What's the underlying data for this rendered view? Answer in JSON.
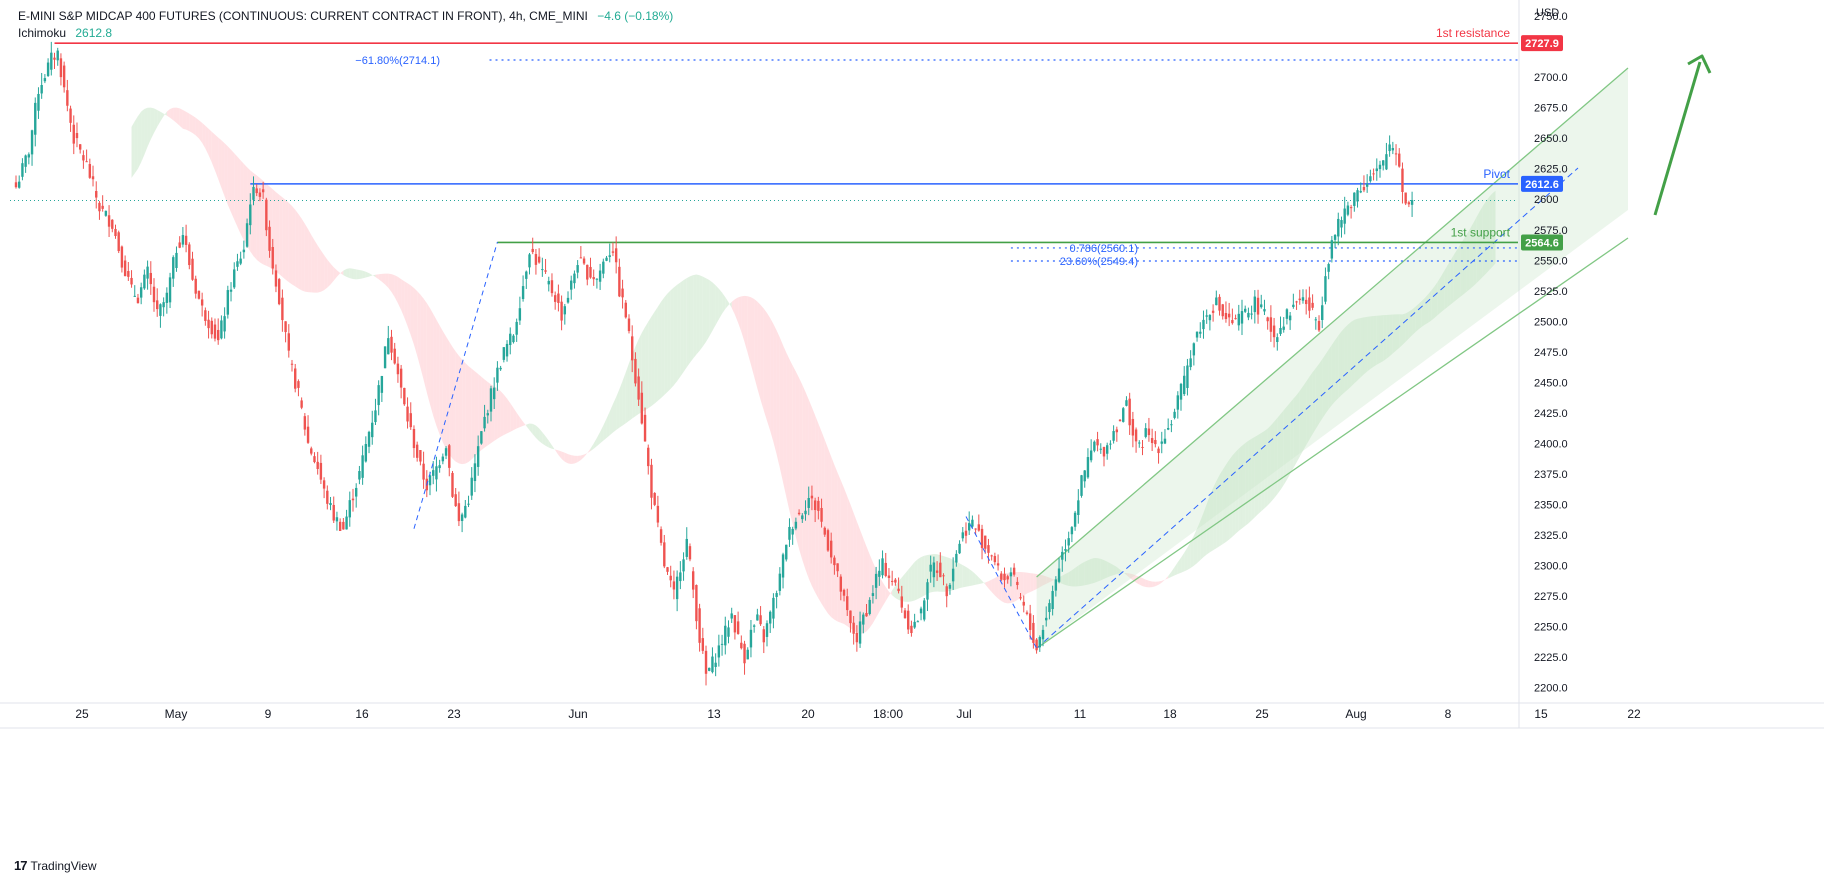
{
  "header": {
    "symbol": "E-MINI S&P MIDCAP 400 FUTURES (CONTINUOUS: CURRENT CONTRACT IN FRONT), 4h, CME_MINI",
    "change": "−4.6 (−0.18%)",
    "indicator_name": "Ichimoku",
    "indicator_value": "2612.8"
  },
  "currency": "USD",
  "footer": {
    "brand": "TradingView"
  },
  "colors": {
    "bull": "#26a69a",
    "bear": "#ef5350",
    "resistance": "#f23645",
    "pivot": "#2962ff",
    "support": "#43a047",
    "fib": "#2962ff",
    "cloud_bull": "#c8e6c9",
    "cloud_bear": "#ffcdd2",
    "channel": "#81c784"
  },
  "chart_data": {
    "type": "candlestick",
    "interval": "4h",
    "ylim": [
      2188,
      2760
    ],
    "y_ticks": [
      2200,
      2225,
      2250,
      2275,
      2300,
      2325,
      2350,
      2375,
      2400,
      2425,
      2450,
      2475,
      2500,
      2525,
      2550,
      2575,
      2600,
      2625,
      2650,
      2675,
      2700,
      2750
    ],
    "y_tick_labels": [
      "2200.0",
      "2225.0",
      "2250.0",
      "2275.0",
      "2300.0",
      "2325.0",
      "2350.0",
      "2375.0",
      "2400.0",
      "2425.0",
      "2450.0",
      "2475.0",
      "2500.0",
      "2525.0",
      "2550.0",
      "2575.0",
      "2600",
      "2625.0",
      "2650.0",
      "2675.0",
      "2700.0",
      "2750.0"
    ],
    "x_labels": [
      "25",
      "May",
      "9",
      "16",
      "23",
      "Jun",
      "13",
      "20",
      "18:00",
      "Jul",
      "11",
      "18",
      "25",
      "Aug",
      "8",
      "15",
      "22"
    ],
    "series_path": [
      [
        0,
        2610
      ],
      [
        4,
        2640
      ],
      [
        7,
        2690
      ],
      [
        11,
        2715
      ],
      [
        13,
        2720
      ],
      [
        15,
        2690
      ],
      [
        18,
        2650
      ],
      [
        22,
        2628
      ],
      [
        26,
        2593
      ],
      [
        30,
        2580
      ],
      [
        33,
        2550
      ],
      [
        36,
        2525
      ],
      [
        38,
        2520
      ],
      [
        41,
        2540
      ],
      [
        44,
        2505
      ],
      [
        47,
        2520
      ],
      [
        50,
        2560
      ],
      [
        52,
        2572
      ],
      [
        55,
        2535
      ],
      [
        58,
        2510
      ],
      [
        61,
        2495
      ],
      [
        63,
        2483
      ],
      [
        66,
        2520
      ],
      [
        68,
        2540
      ],
      [
        71,
        2560
      ],
      [
        73,
        2600
      ],
      [
        75,
        2610
      ],
      [
        77,
        2600
      ],
      [
        79,
        2560
      ],
      [
        82,
        2520
      ],
      [
        85,
        2470
      ],
      [
        88,
        2440
      ],
      [
        91,
        2400
      ],
      [
        94,
        2380
      ],
      [
        96,
        2360
      ],
      [
        99,
        2340
      ],
      [
        102,
        2330
      ],
      [
        104,
        2350
      ],
      [
        107,
        2375
      ],
      [
        110,
        2410
      ],
      [
        112,
        2430
      ],
      [
        114,
        2460
      ],
      [
        116,
        2490
      ],
      [
        118,
        2470
      ],
      [
        121,
        2430
      ],
      [
        124,
        2400
      ],
      [
        126,
        2380
      ],
      [
        128,
        2365
      ],
      [
        131,
        2380
      ],
      [
        134,
        2400
      ],
      [
        136,
        2360
      ],
      [
        138,
        2335
      ],
      [
        141,
        2355
      ],
      [
        144,
        2395
      ],
      [
        146,
        2420
      ],
      [
        149,
        2450
      ],
      [
        152,
        2475
      ],
      [
        155,
        2490
      ],
      [
        158,
        2530
      ],
      [
        160,
        2560
      ],
      [
        162,
        2550
      ],
      [
        165,
        2535
      ],
      [
        168,
        2520
      ],
      [
        170,
        2505
      ],
      [
        173,
        2530
      ],
      [
        175,
        2550
      ],
      [
        178,
        2540
      ],
      [
        181,
        2535
      ],
      [
        184,
        2555
      ],
      [
        186,
        2560
      ],
      [
        188,
        2525
      ],
      [
        190,
        2505
      ],
      [
        192,
        2470
      ],
      [
        194,
        2440
      ],
      [
        196,
        2400
      ],
      [
        198,
        2360
      ],
      [
        200,
        2330
      ],
      [
        202,
        2300
      ],
      [
        205,
        2275
      ],
      [
        207,
        2300
      ],
      [
        209,
        2320
      ],
      [
        211,
        2280
      ],
      [
        213,
        2240
      ],
      [
        215,
        2210
      ],
      [
        217,
        2220
      ],
      [
        219,
        2232
      ],
      [
        221,
        2245
      ],
      [
        223,
        2260
      ],
      [
        225,
        2240
      ],
      [
        227,
        2225
      ],
      [
        229,
        2245
      ],
      [
        231,
        2255
      ],
      [
        233,
        2240
      ],
      [
        235,
        2260
      ],
      [
        238,
        2290
      ],
      [
        240,
        2320
      ],
      [
        242,
        2335
      ],
      [
        245,
        2345
      ],
      [
        247,
        2355
      ],
      [
        250,
        2345
      ],
      [
        252,
        2325
      ],
      [
        254,
        2310
      ],
      [
        256,
        2290
      ],
      [
        258,
        2270
      ],
      [
        260,
        2250
      ],
      [
        262,
        2240
      ],
      [
        264,
        2258
      ],
      [
        266,
        2270
      ],
      [
        268,
        2290
      ],
      [
        270,
        2300
      ],
      [
        272,
        2292
      ],
      [
        275,
        2278
      ],
      [
        277,
        2258
      ],
      [
        279,
        2248
      ],
      [
        282,
        2260
      ],
      [
        284,
        2290
      ],
      [
        286,
        2300
      ],
      [
        288,
        2295
      ],
      [
        290,
        2280
      ],
      [
        292,
        2300
      ],
      [
        294,
        2320
      ],
      [
        296,
        2330
      ],
      [
        298,
        2335
      ],
      [
        300,
        2325
      ],
      [
        302,
        2315
      ],
      [
        304,
        2310
      ],
      [
        306,
        2295
      ],
      [
        308,
        2288
      ],
      [
        310,
        2295
      ],
      [
        312,
        2278
      ],
      [
        314,
        2265
      ],
      [
        316,
        2248
      ],
      [
        318,
        2232
      ],
      [
        320,
        2250
      ],
      [
        322,
        2268
      ],
      [
        324,
        2290
      ],
      [
        326,
        2310
      ],
      [
        328,
        2325
      ],
      [
        330,
        2345
      ],
      [
        332,
        2368
      ],
      [
        334,
        2385
      ],
      [
        336,
        2400
      ],
      [
        338,
        2392
      ],
      [
        340,
        2398
      ],
      [
        342,
        2410
      ],
      [
        344,
        2420
      ],
      [
        346,
        2432
      ],
      [
        348,
        2408
      ],
      [
        350,
        2395
      ],
      [
        352,
        2408
      ],
      [
        354,
        2400
      ],
      [
        356,
        2398
      ],
      [
        358,
        2408
      ],
      [
        360,
        2418
      ],
      [
        362,
        2436
      ],
      [
        364,
        2450
      ],
      [
        366,
        2475
      ],
      [
        368,
        2490
      ],
      [
        370,
        2500
      ],
      [
        372,
        2510
      ],
      [
        374,
        2515
      ],
      [
        376,
        2505
      ],
      [
        378,
        2500
      ],
      [
        380,
        2498
      ],
      [
        382,
        2505
      ],
      [
        384,
        2508
      ],
      [
        386,
        2515
      ],
      [
        388,
        2508
      ],
      [
        390,
        2502
      ],
      [
        392,
        2488
      ],
      [
        394,
        2496
      ],
      [
        396,
        2505
      ],
      [
        398,
        2512
      ],
      [
        400,
        2520
      ],
      [
        402,
        2515
      ],
      [
        404,
        2506
      ],
      [
        406,
        2498
      ],
      [
        408,
        2540
      ],
      [
        410,
        2565
      ],
      [
        412,
        2578
      ],
      [
        414,
        2590
      ],
      [
        416,
        2598
      ],
      [
        418,
        2608
      ],
      [
        420,
        2612
      ],
      [
        422,
        2618
      ],
      [
        424,
        2622
      ],
      [
        426,
        2628
      ],
      [
        428,
        2645
      ],
      [
        430,
        2640
      ],
      [
        431,
        2628
      ],
      [
        432,
        2610
      ],
      [
        433,
        2595
      ],
      [
        434,
        2600
      ],
      [
        435,
        2598
      ]
    ],
    "series_x_max": 468,
    "levels": [
      {
        "name": "1st resistance",
        "value": 2727.9,
        "label": "2727.9"
      },
      {
        "name": "Pivot",
        "value": 2612.6,
        "label": "2612.6"
      },
      {
        "name": "1st support",
        "value": 2564.6,
        "label": "2564.6"
      }
    ],
    "current_price": 2599,
    "fib_levels": [
      {
        "text": "−61.80%(2714.1)",
        "value": 2714.1
      },
      {
        "text": "0.786(2560.1)",
        "value": 2560.1
      },
      {
        "text": "23.60%(2549.4)",
        "value": 2549.4
      }
    ]
  }
}
